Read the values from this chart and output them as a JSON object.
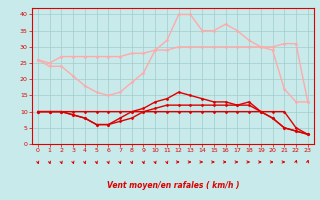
{
  "title": "",
  "xlabel": "Vent moyen/en rafales ( km/h )",
  "xlim": [
    -0.5,
    23.5
  ],
  "ylim": [
    0,
    42
  ],
  "yticks": [
    0,
    5,
    10,
    15,
    20,
    25,
    30,
    35,
    40
  ],
  "xticks": [
    0,
    1,
    2,
    3,
    4,
    5,
    6,
    7,
    8,
    9,
    10,
    11,
    12,
    13,
    14,
    15,
    16,
    17,
    18,
    19,
    20,
    21,
    22,
    23
  ],
  "bg_color": "#c8eaea",
  "grid_color": "#a0cccc",
  "lines": [
    {
      "x": [
        0,
        1,
        2,
        3,
        4,
        5,
        6,
        7,
        8,
        9,
        10,
        11,
        12,
        13,
        14,
        15,
        16,
        17,
        18,
        19,
        20,
        21,
        22,
        23
      ],
      "y": [
        26,
        25,
        27,
        27,
        27,
        27,
        27,
        27,
        28,
        28,
        29,
        29,
        30,
        30,
        30,
        30,
        30,
        30,
        30,
        30,
        30,
        31,
        31,
        13
      ],
      "color": "#ffaaaa",
      "marker": "D",
      "markersize": 1.5,
      "linewidth": 1.0
    },
    {
      "x": [
        0,
        1,
        2,
        3,
        4,
        5,
        6,
        7,
        8,
        9,
        10,
        11,
        12,
        13,
        14,
        15,
        16,
        17,
        18,
        19,
        20,
        21,
        22,
        23
      ],
      "y": [
        26,
        24,
        24,
        21,
        18,
        16,
        15,
        16,
        19,
        22,
        29,
        32,
        40,
        40,
        35,
        35,
        37,
        35,
        32,
        30,
        29,
        17,
        13,
        13
      ],
      "color": "#ffaaaa",
      "marker": "D",
      "markersize": 1.5,
      "linewidth": 1.0
    },
    {
      "x": [
        0,
        1,
        2,
        3,
        4,
        5,
        6,
        7,
        8,
        9,
        10,
        11,
        12,
        13,
        14,
        15,
        16,
        17,
        18,
        19,
        20,
        21,
        22,
        23
      ],
      "y": [
        10,
        10,
        10,
        9,
        8,
        6,
        6,
        8,
        10,
        11,
        13,
        14,
        16,
        15,
        14,
        13,
        13,
        12,
        13,
        10,
        8,
        5,
        4,
        3
      ],
      "color": "#dd0000",
      "marker": "D",
      "markersize": 1.5,
      "linewidth": 1.0
    },
    {
      "x": [
        0,
        1,
        2,
        3,
        4,
        5,
        6,
        7,
        8,
        9,
        10,
        11,
        12,
        13,
        14,
        15,
        16,
        17,
        18,
        19,
        20,
        21,
        22,
        23
      ],
      "y": [
        10,
        10,
        10,
        9,
        8,
        6,
        6,
        7,
        8,
        10,
        11,
        12,
        12,
        12,
        12,
        12,
        12,
        12,
        12,
        10,
        8,
        5,
        4,
        3
      ],
      "color": "#dd0000",
      "marker": "D",
      "markersize": 1.5,
      "linewidth": 1.0
    },
    {
      "x": [
        0,
        1,
        2,
        3,
        4,
        5,
        6,
        7,
        8,
        9,
        10,
        11,
        12,
        13,
        14,
        15,
        16,
        17,
        18,
        19,
        20,
        21,
        22,
        23
      ],
      "y": [
        10,
        10,
        10,
        10,
        10,
        10,
        10,
        10,
        10,
        10,
        10,
        10,
        10,
        10,
        10,
        10,
        10,
        10,
        10,
        10,
        10,
        10,
        5,
        3
      ],
      "color": "#dd0000",
      "marker": "D",
      "markersize": 1.5,
      "linewidth": 1.0
    }
  ],
  "arrow_color": "#dd0000",
  "tick_color": "#dd0000",
  "label_color": "#dd0000",
  "axis_color": "#dd0000",
  "arrow_angles": [
    45,
    45,
    45,
    45,
    45,
    45,
    45,
    45,
    45,
    45,
    45,
    45,
    90,
    90,
    90,
    90,
    90,
    90,
    90,
    90,
    90,
    90,
    135,
    135
  ]
}
